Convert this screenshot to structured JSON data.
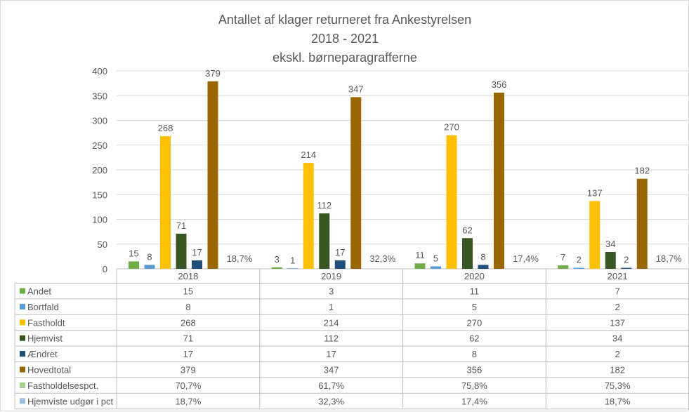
{
  "chart_data": {
    "type": "bar",
    "title": [
      "Antallet af klager returneret fra Ankestyrelsen",
      "2018 - 2021",
      "ekskl. børneparagrafferne"
    ],
    "xlabel": "",
    "ylabel": "",
    "ylim": [
      0,
      400
    ],
    "yticks": [
      "0",
      "50",
      "100",
      "150",
      "200",
      "250",
      "300",
      "350",
      "400"
    ],
    "grid": true,
    "legend": "table-below",
    "categories": [
      "2018",
      "2019",
      "2020",
      "2021"
    ],
    "series": [
      {
        "name": "Andet",
        "color": "#70ad47",
        "values": [
          15,
          3,
          11,
          7
        ],
        "labels": [
          "15",
          "3",
          "11",
          "7"
        ],
        "bar": true
      },
      {
        "name": "Bortfald",
        "color": "#5b9bd5",
        "values": [
          8,
          1,
          5,
          2
        ],
        "labels": [
          "8",
          "1",
          "5",
          "2"
        ],
        "bar": true
      },
      {
        "name": "Fastholdt",
        "color": "#ffc000",
        "values": [
          268,
          214,
          270,
          137
        ],
        "labels": [
          "268",
          "214",
          "270",
          "137"
        ],
        "bar": true
      },
      {
        "name": "Hjemvist",
        "color": "#375623",
        "values": [
          71,
          112,
          62,
          34
        ],
        "labels": [
          "71",
          "112",
          "62",
          "34"
        ],
        "bar": true
      },
      {
        "name": "Ændret",
        "color": "#1f4e79",
        "values": [
          17,
          17,
          8,
          2
        ],
        "labels": [
          "17",
          "17",
          "8",
          "2"
        ],
        "bar": true
      },
      {
        "name": "Hovedtotal",
        "color": "#996600",
        "values": [
          379,
          347,
          356,
          182
        ],
        "labels": [
          "379",
          "347",
          "356",
          "182"
        ],
        "bar": true
      },
      {
        "name": "Fastholdelsespct.",
        "color": "#a9d18e",
        "values": [
          70.7,
          61.7,
          75.8,
          75.3
        ],
        "labels": [
          "70,7%",
          "61,7%",
          "75,8%",
          "75,3%"
        ],
        "bar": false
      },
      {
        "name": "Hjemviste udgør i pct",
        "color": "#9dc3e6",
        "values": [
          18.7,
          32.3,
          17.4,
          18.7
        ],
        "labels": [
          "18,7%",
          "32,3%",
          "17,4%",
          "18,7%"
        ],
        "bar": false
      }
    ],
    "point_labels": [
      "18,7%",
      "32,3%",
      "17,4%",
      "18,7%"
    ]
  }
}
